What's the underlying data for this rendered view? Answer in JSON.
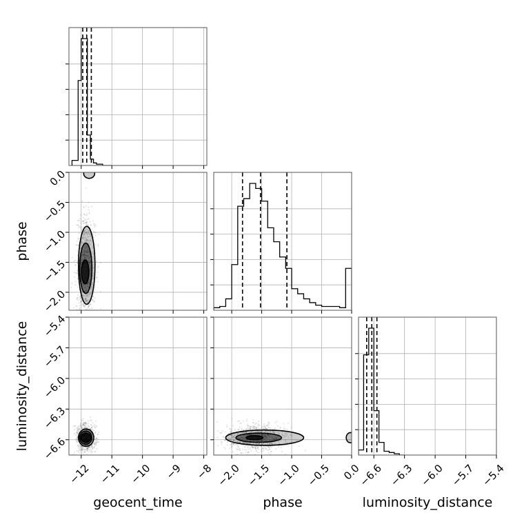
{
  "chart_data": {
    "type": "corner",
    "parameters": [
      "geocent_time",
      "phase",
      "luminosity_distance"
    ],
    "axis_labels": {
      "geocent_time": "geocent_time",
      "phase": "phase",
      "luminosity_distance": "luminosity_distance"
    },
    "ranges": {
      "geocent_time": [
        -12.4,
        -7.9
      ],
      "phase": [
        -2.3,
        0.0
      ],
      "luminosity_distance": [
        -6.75,
        -5.4
      ]
    },
    "ticks": {
      "geocent_time": {
        "values": [
          -12,
          -11,
          -10,
          -9,
          -8
        ],
        "labels": [
          "−12",
          "−11",
          "−10",
          "−9",
          "−8"
        ]
      },
      "phase": {
        "values": [
          -2.0,
          -1.5,
          -1.0,
          -0.5,
          0.0
        ],
        "labels": [
          "−2.0",
          "−1.5",
          "−1.0",
          "−0.5",
          "0.0"
        ]
      },
      "luminosity_distance": {
        "values": [
          -6.6,
          -6.3,
          -6.0,
          -5.7,
          -5.4
        ],
        "labels": [
          "−6.6",
          "−6.3",
          "−6.0",
          "−5.7",
          "−5.4"
        ]
      }
    },
    "grid": true,
    "histograms": {
      "geocent_time": {
        "bin_edges": [
          -12.3,
          -12.2,
          -12.1,
          -12.0,
          -11.9,
          -11.8,
          -11.7,
          -11.6,
          -11.5,
          -11.4,
          -11.3,
          -11.2,
          -11.1,
          -11.0
        ],
        "counts": [
          4,
          4,
          67,
          100,
          100,
          24,
          5,
          2,
          1,
          1,
          0,
          0,
          0
        ],
        "quantiles": [
          -11.95,
          -11.82,
          -11.67
        ]
      },
      "phase": {
        "bin_edges": [
          -2.3,
          -2.2,
          -2.1,
          -2.0,
          -1.9,
          -1.8,
          -1.7,
          -1.6,
          -1.5,
          -1.4,
          -1.3,
          -1.2,
          -1.1,
          -1.0,
          -0.9,
          -0.8,
          -0.7,
          -0.6,
          -0.5,
          -0.4,
          -0.3,
          -0.2,
          -0.1,
          0.0
        ],
        "counts": [
          2,
          3,
          9,
          36,
          82,
          88,
          100,
          96,
          86,
          65,
          54,
          42,
          33,
          17,
          13,
          9,
          6,
          4,
          3,
          3,
          3,
          2,
          33
        ],
        "quantiles": [
          -1.82,
          -1.52,
          -1.08
        ]
      },
      "luminosity_distance": {
        "bin_edges": [
          -6.75,
          -6.7,
          -6.65,
          -6.6,
          -6.55,
          -6.5,
          -6.45,
          -6.4,
          -6.35,
          -6.3
        ],
        "counts": [
          4,
          79,
          100,
          35,
          10,
          3,
          2,
          1,
          0
        ],
        "quantiles": [
          -6.67,
          -6.62,
          -6.57
        ]
      }
    },
    "pairs": [
      {
        "x": "geocent_time",
        "y": "phase",
        "peak": [
          -11.85,
          -1.65
        ],
        "contours": [
          {
            "level": 1,
            "cx": -11.87,
            "cy": -1.66,
            "rx": 0.12,
            "ry": 0.2
          },
          {
            "level": 2,
            "cx": -11.85,
            "cy": -1.6,
            "rx": 0.2,
            "ry": 0.42
          },
          {
            "level": 3,
            "cx": -11.82,
            "cy": -1.55,
            "rx": 0.27,
            "ry": 0.65
          },
          {
            "level": 4,
            "cx": -11.74,
            "cy": -0.02,
            "rx": 0.18,
            "ry": 0.08
          }
        ]
      },
      {
        "x": "geocent_time",
        "y": "luminosity_distance",
        "peak": [
          -11.85,
          -6.58
        ],
        "contours": [
          {
            "level": 1,
            "cx": -11.85,
            "cy": -6.58,
            "rx": 0.16,
            "ry": 0.045
          },
          {
            "level": 2,
            "cx": -11.85,
            "cy": -6.58,
            "rx": 0.2,
            "ry": 0.065
          },
          {
            "level": 3,
            "cx": -11.84,
            "cy": -6.58,
            "rx": 0.25,
            "ry": 0.085
          }
        ]
      },
      {
        "x": "phase",
        "y": "luminosity_distance",
        "peak": [
          -1.6,
          -6.58
        ],
        "contours": [
          {
            "level": 1,
            "cx": -1.62,
            "cy": -6.58,
            "rx": 0.14,
            "ry": 0.02
          },
          {
            "level": 2,
            "cx": -1.55,
            "cy": -6.58,
            "rx": 0.38,
            "ry": 0.045
          },
          {
            "level": 3,
            "cx": -1.45,
            "cy": -6.58,
            "rx": 0.65,
            "ry": 0.075
          },
          {
            "level": 4,
            "cx": -0.02,
            "cy": -6.58,
            "rx": 0.07,
            "ry": 0.05
          }
        ]
      }
    ],
    "colors": {
      "line": "#000000",
      "grid": "#b0b0b0",
      "density": "#000000"
    }
  }
}
